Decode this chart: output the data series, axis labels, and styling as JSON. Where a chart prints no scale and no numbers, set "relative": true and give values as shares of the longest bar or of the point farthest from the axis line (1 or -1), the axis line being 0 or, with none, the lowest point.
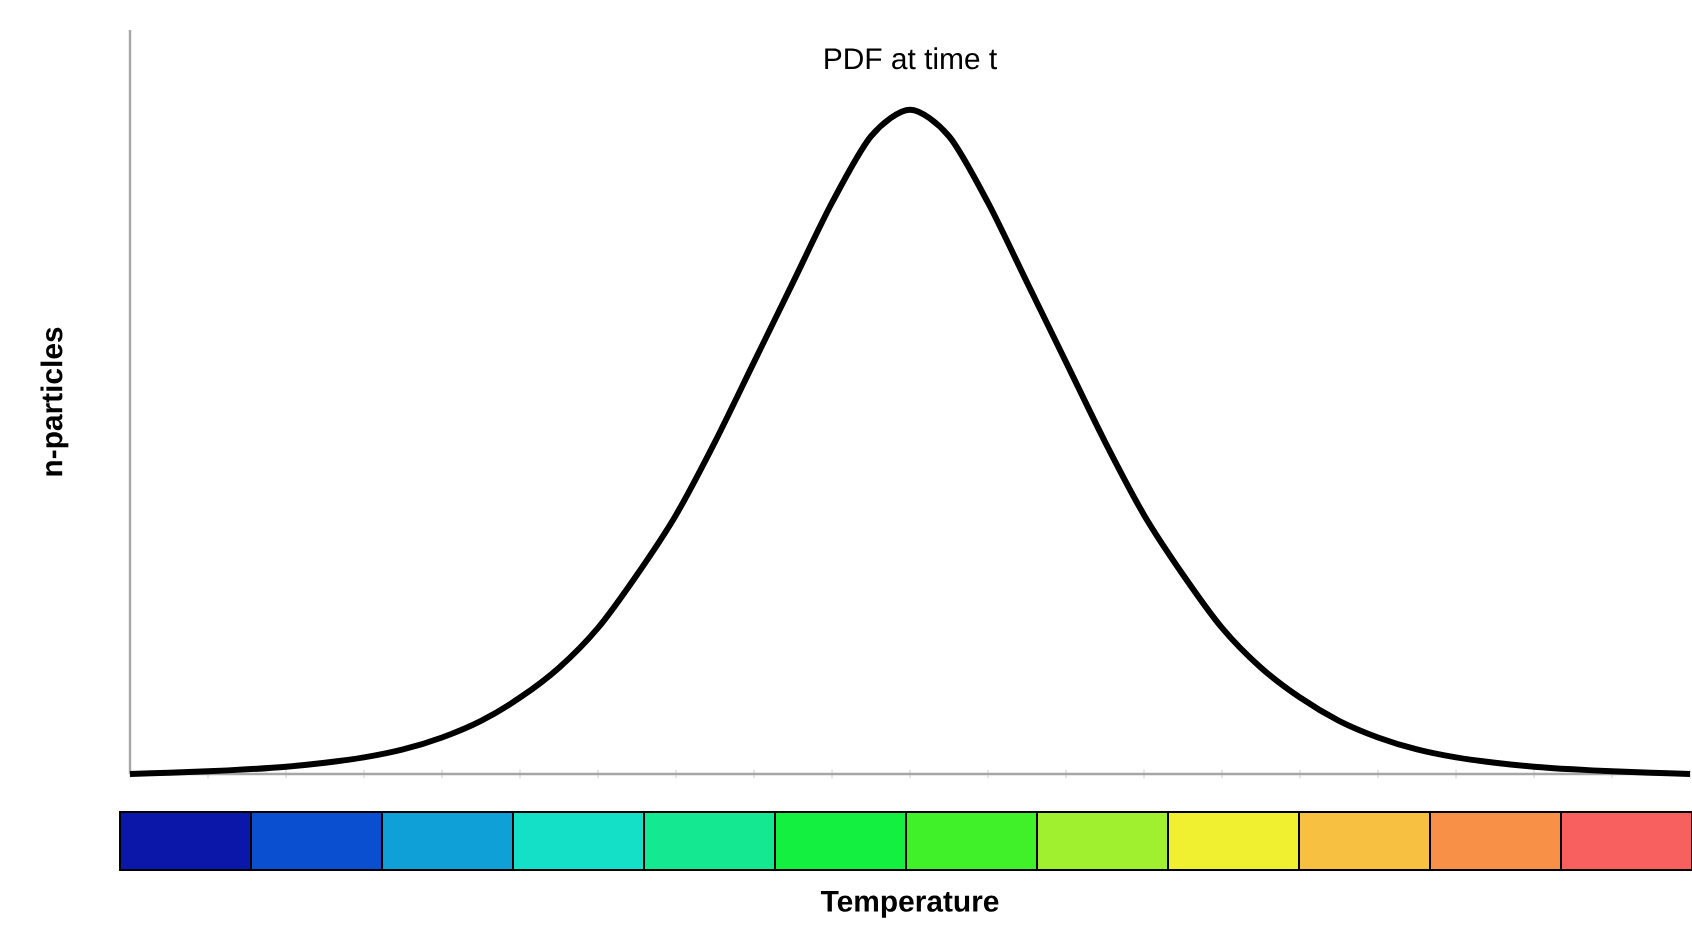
{
  "chart_data": {
    "type": "line",
    "title": "PDF at time t",
    "xlabel": "Temperature",
    "ylabel": "n-particles",
    "relative": true,
    "categories": [
      null,
      null,
      null,
      null,
      null,
      null,
      null,
      null,
      null,
      null,
      null,
      null,
      null,
      null,
      null,
      null,
      null,
      null,
      null,
      null,
      null,
      null,
      null,
      null,
      null,
      null,
      null,
      null,
      null,
      null,
      null,
      null,
      null,
      null,
      null,
      null,
      null,
      null,
      null,
      null,
      null
    ],
    "series": [
      {
        "color": "#000000",
        "values": [
          0.0,
          0.002,
          0.004,
          0.007,
          0.011,
          0.017,
          0.025,
          0.037,
          0.055,
          0.08,
          0.115,
          0.16,
          0.22,
          0.3,
          0.39,
          0.5,
          0.62,
          0.74,
          0.86,
          0.96,
          1.0,
          0.96,
          0.86,
          0.74,
          0.62,
          0.5,
          0.39,
          0.3,
          0.22,
          0.16,
          0.115,
          0.08,
          0.055,
          0.037,
          0.025,
          0.017,
          0.011,
          0.007,
          0.004,
          0.002,
          0.0
        ]
      }
    ],
    "grid": false,
    "marker": "none",
    "line_style": "solid"
  }
}
